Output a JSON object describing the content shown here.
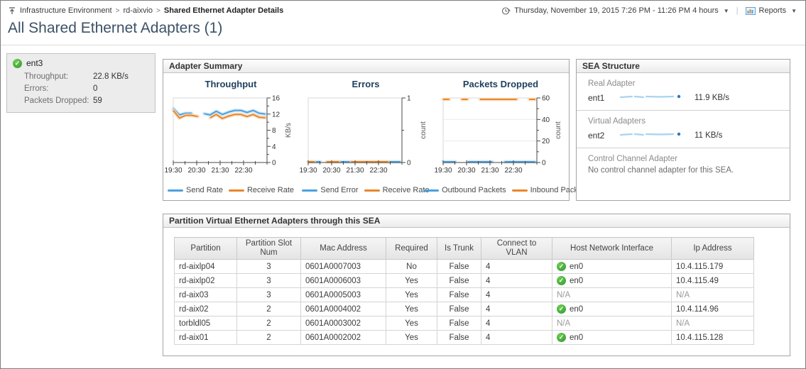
{
  "breadcrumb": {
    "items": [
      "Infrastructure Environment",
      "rd-aixvio",
      "Shared Ethernet Adapter Details"
    ]
  },
  "toolbar": {
    "time_range": "Thursday, November 19, 2015 7:26 PM - 11:26 PM 4 hours",
    "reports_label": "Reports"
  },
  "page_title": "All Shared Ethernet Adapters (1)",
  "adapter_card": {
    "name": "ent3",
    "metrics": [
      {
        "label": "Throughput:",
        "value": "22.8 KB/s"
      },
      {
        "label": "Errors:",
        "value": "0"
      },
      {
        "label": "Packets Dropped:",
        "value": "59"
      }
    ]
  },
  "adapter_summary": {
    "title": "Adapter Summary"
  },
  "chart_data": [
    {
      "type": "line",
      "title": "Throughput",
      "ylabel": "KB/s",
      "ylim": [
        0,
        16
      ],
      "yticks": [
        0,
        4,
        8,
        12,
        16
      ],
      "xticklabels": [
        "19:30",
        "20:30",
        "21:30",
        "22:30"
      ],
      "grid": false,
      "legend": [
        "Send Rate",
        "Receive Rate"
      ],
      "series": [
        {
          "name": "Send Rate",
          "color": "#4ba1e0",
          "band": "#cde5f6",
          "values": [
            13.4,
            11.8,
            12.2,
            12.2,
            null,
            12.1,
            11.8,
            12.7,
            11.9,
            12.5,
            12.9,
            12.9,
            12.4,
            12.9,
            12.2,
            12.0
          ]
        },
        {
          "name": "Receive Rate",
          "color": "#e8862c",
          "band": "#f6dcbd",
          "values": [
            12.9,
            11.0,
            11.7,
            11.7,
            11.4,
            null,
            11.1,
            11.9,
            10.9,
            11.5,
            11.9,
            11.9,
            11.4,
            11.9,
            11.2,
            11.1
          ]
        }
      ]
    },
    {
      "type": "line",
      "title": "Errors",
      "ylabel": "count",
      "ylim": [
        0,
        1
      ],
      "yticks": [
        0,
        1
      ],
      "xticklabels": [
        "19:30",
        "20:30",
        "21:30",
        "22:30"
      ],
      "grid": false,
      "legend": [
        "Send Error",
        "Receive Rate"
      ],
      "series": [
        {
          "name": "Send Error",
          "color": "#4ba1e0",
          "band": "#cde5f6",
          "values": [
            0,
            0,
            0,
            null,
            0,
            0,
            0,
            0,
            null,
            0,
            0,
            0,
            0,
            0,
            0,
            0
          ]
        },
        {
          "name": "Receive Rate",
          "color": "#e8862c",
          "band": "#f6dcbd",
          "values": [
            0,
            0,
            null,
            0,
            0,
            0,
            null,
            0,
            0,
            0,
            0,
            0,
            0,
            0,
            null,
            0
          ]
        }
      ]
    },
    {
      "type": "line",
      "title": "Packets Dropped",
      "ylabel": "count",
      "ylim": [
        0,
        60
      ],
      "yticks": [
        0,
        20,
        40,
        60
      ],
      "xticklabels": [
        "19:30",
        "20:30",
        "21:30",
        "22:30"
      ],
      "grid": true,
      "legend": [
        "Outbound Packets",
        "Inbound Pack"
      ],
      "series": [
        {
          "name": "Outbound Packets",
          "color": "#4ba1e0",
          "band": "#cde5f6",
          "values": [
            0,
            0,
            0,
            null,
            0,
            0,
            0,
            0,
            0,
            null,
            0,
            0,
            0,
            0,
            0,
            0
          ]
        },
        {
          "name": "Inbound Packets",
          "color": "#e8862c",
          "band": "#f6dcbd",
          "values": [
            59,
            59,
            null,
            59,
            59,
            null,
            59,
            59,
            59,
            59,
            59,
            59,
            59,
            null,
            59,
            59
          ]
        }
      ]
    }
  ],
  "sea_structure": {
    "title": "SEA Structure",
    "sections": [
      {
        "heading": "Real Adapter",
        "adapter": "ent1",
        "rate": "11.9 KB/s"
      },
      {
        "heading": "Virtual Adapters",
        "adapter": "ent2",
        "rate": "11 KB/s"
      },
      {
        "heading": "Control Channel Adapter",
        "note": "No control channel adapter for this SEA."
      }
    ]
  },
  "partition_table": {
    "title": "Partition Virtual Ethernet Adapters through this SEA",
    "columns": [
      "Partition",
      "Partition Slot Num",
      "Mac Address",
      "Required",
      "Is Trunk",
      "Connect to VLAN",
      "Host Network Interface",
      "Ip Address"
    ],
    "rows": [
      {
        "partition": "rd-aixlp04",
        "slot": "3",
        "mac": "0601A0007003",
        "required": "No",
        "is_trunk": "False",
        "vlan": "4",
        "host_interface": "en0",
        "host_status": "ok",
        "ip": "10.4.115.179"
      },
      {
        "partition": "rd-aixlp02",
        "slot": "3",
        "mac": "0601A0006003",
        "required": "Yes",
        "is_trunk": "False",
        "vlan": "4",
        "host_interface": "en0",
        "host_status": "ok",
        "ip": "10.4.115.49"
      },
      {
        "partition": "rd-aix03",
        "slot": "3",
        "mac": "0601A0005003",
        "required": "Yes",
        "is_trunk": "False",
        "vlan": "4",
        "host_interface": "N/A",
        "host_status": "na",
        "ip": "N/A"
      },
      {
        "partition": "rd-aix02",
        "slot": "2",
        "mac": "0601A0004002",
        "required": "Yes",
        "is_trunk": "False",
        "vlan": "4",
        "host_interface": "en0",
        "host_status": "ok",
        "ip": "10.4.114.96"
      },
      {
        "partition": "torbldl05",
        "slot": "2",
        "mac": "0601A0003002",
        "required": "Yes",
        "is_trunk": "False",
        "vlan": "4",
        "host_interface": "N/A",
        "host_status": "na",
        "ip": "N/A"
      },
      {
        "partition": "rd-aix01",
        "slot": "2",
        "mac": "0601A0002002",
        "required": "Yes",
        "is_trunk": "False",
        "vlan": "4",
        "host_interface": "en0",
        "host_status": "ok",
        "ip": "10.4.115.128"
      }
    ]
  },
  "colors": {
    "accent_blue": "#4ba1e0",
    "accent_orange": "#e8862c",
    "status_green": "#2b9b2b",
    "title_navy": "#1e3f5c"
  }
}
